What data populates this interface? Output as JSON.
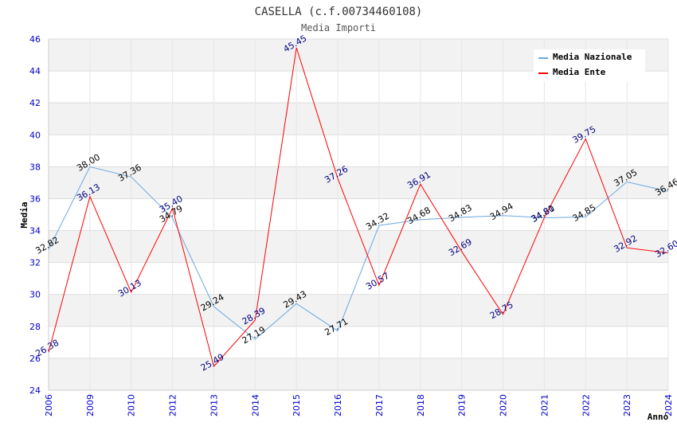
{
  "chart_data": {
    "type": "line",
    "title": "CASELLA (c.f.00734460108)",
    "subtitle": "Media Importi",
    "xlabel": "Anno",
    "ylabel": "Media",
    "ylim": [
      24,
      46
    ],
    "y_ticks": [
      "24",
      "26",
      "28",
      "30",
      "32",
      "34",
      "36",
      "38",
      "40",
      "42",
      "44",
      "46"
    ],
    "categories": [
      "2006",
      "2009",
      "2010",
      "2012",
      "2013",
      "2014",
      "2015",
      "2016",
      "2017",
      "2018",
      "2019",
      "2020",
      "2021",
      "2022",
      "2023",
      "2024"
    ],
    "legend_position": "top-right",
    "series": [
      {
        "name": "Media Nazionale",
        "color": "#6aa8e0",
        "values": [
          32.82,
          38.0,
          37.36,
          34.79,
          29.24,
          27.19,
          29.43,
          27.71,
          34.32,
          34.68,
          34.83,
          34.94,
          34.8,
          34.85,
          37.05,
          36.46
        ],
        "labels": [
          "32.82",
          "38.00",
          "37.36",
          "34.79",
          "29.24",
          "27.19",
          "29.43",
          "27.71",
          "34.32",
          "34.68",
          "34.83",
          "34.94",
          "34.80",
          "34.85",
          "37.05",
          "36.46"
        ]
      },
      {
        "name": "Media Ente",
        "color": "#ff0000",
        "values": [
          26.38,
          36.13,
          30.13,
          35.4,
          25.49,
          28.39,
          45.45,
          37.26,
          30.57,
          36.91,
          32.69,
          28.75,
          34.81,
          39.75,
          32.92,
          32.6
        ],
        "labels": [
          "26.38",
          "36.13",
          "30.13",
          "35.40",
          "25.49",
          "28.39",
          "45.45",
          "37.26",
          "30.57",
          "36.91",
          "32.69",
          "28.75",
          "34.81",
          "39.75",
          "32.92",
          "32.60"
        ]
      }
    ]
  }
}
